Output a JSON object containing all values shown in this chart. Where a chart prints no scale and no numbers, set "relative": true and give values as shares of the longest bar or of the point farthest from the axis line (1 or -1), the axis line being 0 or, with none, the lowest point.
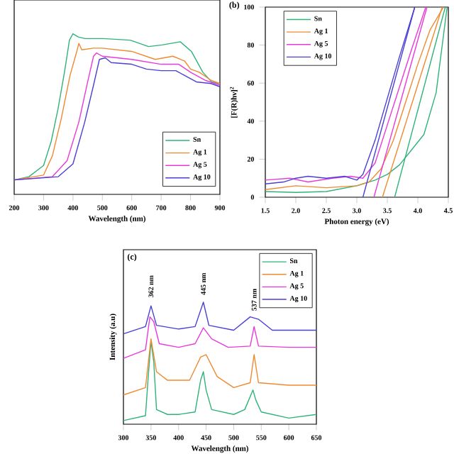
{
  "chart_data": [
    {
      "type": "line",
      "xlabel": "Wavelength (nm)",
      "relative": true,
      "xlim": [
        200,
        900
      ],
      "xticks": [
        200,
        300,
        400,
        500,
        600,
        700,
        800,
        900
      ],
      "tick_labels": "x",
      "legend": "bottom right",
      "grid": false,
      "marker": "none",
      "line_style": "solid",
      "series": [
        {
          "name": "Sn",
          "color": "#2fb37a",
          "x": [
            200,
            250,
            300,
            326,
            349,
            372,
            388,
            400,
            418,
            441,
            503,
            595,
            657,
            703,
            765,
            803,
            842,
            872,
            900
          ],
          "values": [
            0.09,
            0.11,
            0.18,
            0.33,
            0.53,
            0.77,
            0.96,
            1.0,
            0.98,
            0.97,
            0.97,
            0.96,
            0.92,
            0.93,
            0.95,
            0.89,
            0.76,
            0.7,
            0.69
          ]
        },
        {
          "name": "Ag 1",
          "color": "#f08a30",
          "x": [
            200,
            300,
            330,
            360,
            390,
            413,
            420,
            430,
            470,
            500,
            600,
            680,
            740,
            780,
            800,
            830,
            870,
            900
          ],
          "values": [
            0.09,
            0.12,
            0.24,
            0.47,
            0.74,
            0.89,
            0.94,
            0.9,
            0.91,
            0.91,
            0.89,
            0.84,
            0.86,
            0.83,
            0.78,
            0.76,
            0.71,
            0.69
          ]
        },
        {
          "name": "Ag 5",
          "color": "#e83ad8",
          "x": [
            200,
            330,
            380,
            420,
            450,
            470,
            480,
            500,
            600,
            700,
            760,
            800,
            850,
            900
          ],
          "values": [
            0.09,
            0.11,
            0.21,
            0.45,
            0.7,
            0.86,
            0.88,
            0.86,
            0.84,
            0.81,
            0.81,
            0.76,
            0.71,
            0.68
          ]
        },
        {
          "name": "Ag 10",
          "color": "#4a3fd6",
          "x": [
            200,
            350,
            400,
            440,
            470,
            490,
            510,
            530,
            600,
            650,
            700,
            750,
            780,
            820,
            870,
            900
          ],
          "values": [
            0.09,
            0.11,
            0.19,
            0.45,
            0.68,
            0.84,
            0.85,
            0.82,
            0.81,
            0.78,
            0.77,
            0.77,
            0.74,
            0.7,
            0.69,
            0.67
          ]
        }
      ]
    },
    {
      "type": "line",
      "title": "(b)",
      "xlabel": "Photon energy (eV)",
      "ylabel": "[F(R)hν]$^{2}$",
      "xlim": [
        1.5,
        4.5
      ],
      "ylim": [
        0,
        100
      ],
      "xticks": [
        1.5,
        {
          "value": 2,
          "label": "2.0"
        },
        2.5,
        {
          "value": 3,
          "label": "3.0"
        },
        3.5,
        {
          "value": 4,
          "label": "4.0"
        },
        4.5
      ],
      "yticks": [
        0,
        20,
        40,
        60,
        80,
        100
      ],
      "legend": "top left",
      "grid": false,
      "marker": "none",
      "line_style": "solid",
      "series": [
        {
          "name": "Sn",
          "color": "#2fb37a",
          "x": [
            1.5,
            2.0,
            2.5,
            3.0,
            3.3,
            3.5,
            3.7,
            3.9,
            4.1,
            4.3,
            4.48
          ],
          "values": [
            3,
            2.5,
            3,
            6,
            9,
            12,
            17,
            25,
            33,
            55,
            100
          ]
        },
        {
          "name": "Ag 1",
          "color": "#f08a30",
          "x": [
            1.5,
            2.0,
            2.5,
            3.0,
            3.2,
            3.4,
            3.6,
            3.8,
            4.0,
            4.2,
            4.42
          ],
          "values": [
            4,
            6,
            5,
            6,
            8,
            15,
            30,
            50,
            70,
            88,
            100
          ]
        },
        {
          "name": "Ag 5",
          "color": "#e83ad8",
          "x": [
            1.5,
            1.9,
            2.2,
            2.6,
            2.9,
            3.1,
            3.3,
            3.5,
            3.7,
            3.9,
            4.13
          ],
          "values": [
            9,
            10,
            8,
            10,
            11,
            10,
            18,
            38,
            58,
            78,
            100
          ]
        },
        {
          "name": "Ag 10",
          "color": "#4a3fd6",
          "x": [
            1.5,
            1.8,
            2.0,
            2.2,
            2.5,
            2.8,
            3.0,
            3.1,
            3.3,
            3.5,
            3.7,
            3.95
          ],
          "values": [
            7,
            8,
            10,
            11,
            10,
            11,
            9,
            12,
            30,
            52,
            74,
            100
          ]
        },
        {
          "color": "#2fb37a",
          "x": [
            3.62,
            4.45
          ],
          "values": [
            0,
            100
          ]
        },
        {
          "color": "#f08a30",
          "x": [
            3.42,
            4.4
          ],
          "values": [
            0,
            100
          ]
        },
        {
          "color": "#e83ad8",
          "x": [
            3.28,
            4.15
          ],
          "values": [
            0,
            100
          ]
        },
        {
          "color": "#4a3fd6",
          "x": [
            3.1,
            3.95
          ],
          "values": [
            0,
            100
          ]
        }
      ]
    },
    {
      "type": "line",
      "title": "(c)",
      "xlabel": "Wavelength (nm)",
      "ylabel": "Intensity (a.u)",
      "relative": true,
      "xlim": [
        300,
        650
      ],
      "xticks": [
        300,
        350,
        400,
        450,
        500,
        550,
        600,
        650
      ],
      "tick_labels": "x",
      "legend": "top right",
      "grid": false,
      "marker": "none",
      "line_style": "solid",
      "annotations": [
        {
          "text": "362 nm",
          "x": 350,
          "y": 1.03
        },
        {
          "text": "445 nm",
          "x": 445,
          "y": 1.05
        },
        {
          "text": "537 nm",
          "x": 537,
          "y": 0.92
        }
      ],
      "series": [
        {
          "name": "Sn",
          "color": "#2fb37a",
          "x": [
            300,
            340,
            345,
            350,
            355,
            360,
            380,
            400,
            430,
            440,
            445,
            450,
            460,
            500,
            520,
            535,
            540,
            550,
            600,
            650
          ],
          "values": [
            0.03,
            0.07,
            0.39,
            0.68,
            0.51,
            0.12,
            0.08,
            0.08,
            0.1,
            0.36,
            0.43,
            0.28,
            0.12,
            0.08,
            0.12,
            0.28,
            0.2,
            0.1,
            0.05,
            0.08
          ]
        },
        {
          "name": "Ag 1",
          "color": "#f08a30",
          "x": [
            300,
            340,
            350,
            360,
            380,
            420,
            440,
            450,
            470,
            500,
            530,
            537,
            545,
            600,
            650
          ],
          "values": [
            0.24,
            0.3,
            0.7,
            0.43,
            0.36,
            0.36,
            0.55,
            0.57,
            0.39,
            0.3,
            0.34,
            0.57,
            0.34,
            0.32,
            0.32
          ]
        },
        {
          "name": "Ag 5",
          "color": "#e83ad8",
          "x": [
            300,
            340,
            348,
            355,
            365,
            400,
            430,
            445,
            460,
            490,
            530,
            537,
            545,
            600,
            650
          ],
          "values": [
            0.54,
            0.61,
            0.88,
            0.84,
            0.66,
            0.63,
            0.66,
            0.79,
            0.7,
            0.63,
            0.64,
            0.8,
            0.64,
            0.63,
            0.63
          ]
        },
        {
          "name": "Ag 10",
          "color": "#4a3fd6",
          "x": [
            300,
            340,
            350,
            360,
            400,
            430,
            445,
            455,
            500,
            530,
            545,
            570,
            650
          ],
          "values": [
            0.74,
            0.8,
            0.97,
            0.81,
            0.78,
            0.8,
            1.0,
            0.81,
            0.77,
            0.88,
            0.86,
            0.77,
            0.77
          ]
        }
      ]
    }
  ]
}
